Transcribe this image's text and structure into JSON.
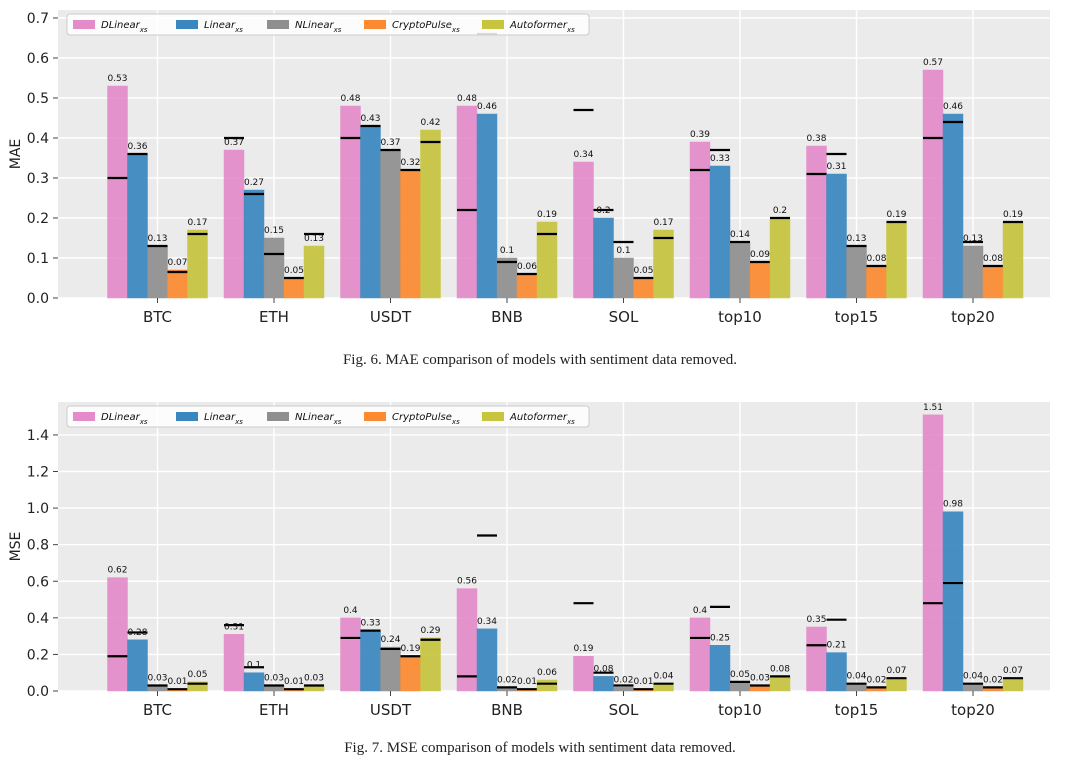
{
  "chart_data": [
    {
      "type": "bar",
      "ylabel": "MAE",
      "ylim": [
        0,
        0.72
      ],
      "yticks": [
        "0.0",
        "0.1",
        "0.2",
        "0.3",
        "0.4",
        "0.5",
        "0.6",
        "0.7"
      ],
      "ytick_values": [
        0,
        0.1,
        0.2,
        0.3,
        0.4,
        0.5,
        0.6,
        0.7
      ],
      "grid": true,
      "legend_position": "top-left",
      "categories": [
        "BTC",
        "ETH",
        "USDT",
        "BNB",
        "SOL",
        "top10",
        "top15",
        "top20"
      ],
      "series": [
        {
          "name": "DLinear",
          "sub": "xs",
          "color": "#e48bca",
          "values": [
            0.53,
            0.37,
            0.48,
            0.48,
            0.34,
            0.39,
            0.38,
            0.57
          ],
          "labels": [
            "0.53",
            "0.37",
            "0.48",
            "0.48",
            "0.34",
            "0.39",
            "0.38",
            "0.57"
          ],
          "baseline": [
            0.3,
            0.4,
            0.4,
            0.22,
            0.47,
            0.32,
            0.31,
            0.4
          ]
        },
        {
          "name": "Linear",
          "sub": "xs",
          "color": "#3a87c0",
          "values": [
            0.36,
            0.27,
            0.43,
            0.46,
            0.2,
            0.33,
            0.31,
            0.46
          ],
          "labels": [
            "0.36",
            "0.27",
            "0.43",
            "0.46",
            "0.2",
            "0.33",
            "0.31",
            "0.46"
          ],
          "baseline": [
            0.36,
            0.26,
            0.43,
            0.66,
            0.22,
            0.37,
            0.36,
            0.44
          ]
        },
        {
          "name": "NLinear",
          "sub": "xs",
          "color": "#8f8f8f",
          "values": [
            0.13,
            0.15,
            0.37,
            0.1,
            0.1,
            0.14,
            0.13,
            0.13
          ],
          "labels": [
            "0.13",
            "0.15",
            "0.37",
            "0.1",
            "0.1",
            "0.14",
            "0.13",
            "0.13"
          ],
          "baseline": [
            0.13,
            0.11,
            0.37,
            0.09,
            0.14,
            0.14,
            0.13,
            0.14
          ]
        },
        {
          "name": "CryptoPulse",
          "sub": "xs",
          "color": "#fb8a30",
          "values": [
            0.07,
            0.05,
            0.32,
            0.06,
            0.05,
            0.09,
            0.08,
            0.08
          ],
          "labels": [
            "0.07",
            "0.05",
            "0.32",
            "0.06",
            "0.05",
            "0.09",
            "0.08",
            "0.08"
          ],
          "baseline": [
            0.065,
            0.05,
            0.32,
            0.06,
            0.05,
            0.09,
            0.08,
            0.08
          ]
        },
        {
          "name": "Autoformer",
          "sub": "xs",
          "color": "#c7c43e",
          "values": [
            0.17,
            0.13,
            0.42,
            0.19,
            0.17,
            0.2,
            0.19,
            0.19
          ],
          "labels": [
            "0.17",
            "0.13",
            "0.42",
            "0.19",
            "0.17",
            "0.2",
            "0.19",
            "0.19"
          ],
          "baseline": [
            0.16,
            0.16,
            0.39,
            0.16,
            0.15,
            0.2,
            0.19,
            0.19
          ]
        }
      ],
      "caption": "Fig. 6.  MAE comparison of models with sentiment data removed."
    },
    {
      "type": "bar",
      "ylabel": "MSE",
      "ylim": [
        0,
        1.58
      ],
      "yticks": [
        "0.0",
        "0.2",
        "0.4",
        "0.6",
        "0.8",
        "1.0",
        "1.2",
        "1.4"
      ],
      "ytick_values": [
        0,
        0.2,
        0.4,
        0.6,
        0.8,
        1.0,
        1.2,
        1.4
      ],
      "grid": true,
      "legend_position": "top-left",
      "categories": [
        "BTC",
        "ETH",
        "USDT",
        "BNB",
        "SOL",
        "top10",
        "top15",
        "top20"
      ],
      "series": [
        {
          "name": "DLinear",
          "sub": "xs",
          "color": "#e48bca",
          "values": [
            0.62,
            0.31,
            0.4,
            0.56,
            0.19,
            0.4,
            0.35,
            1.51
          ],
          "labels": [
            "0.62",
            "0.31",
            "0.4",
            "0.56",
            "0.19",
            "0.4",
            "0.35",
            "1.51"
          ],
          "baseline": [
            0.19,
            0.36,
            0.29,
            0.08,
            0.48,
            0.29,
            0.25,
            0.48
          ]
        },
        {
          "name": "Linear",
          "sub": "xs",
          "color": "#3a87c0",
          "values": [
            0.28,
            0.1,
            0.33,
            0.34,
            0.08,
            0.25,
            0.21,
            0.98
          ],
          "labels": [
            "0.28",
            "0.1",
            "0.33",
            "0.34",
            "0.08",
            "0.25",
            "0.21",
            "0.98"
          ],
          "baseline": [
            0.32,
            0.13,
            0.33,
            0.85,
            0.1,
            0.46,
            0.39,
            0.59
          ]
        },
        {
          "name": "NLinear",
          "sub": "xs",
          "color": "#8f8f8f",
          "values": [
            0.03,
            0.03,
            0.24,
            0.02,
            0.02,
            0.05,
            0.04,
            0.04
          ],
          "labels": [
            "0.03",
            "0.03",
            "0.24",
            "0.02",
            "0.02",
            "0.05",
            "0.04",
            "0.04"
          ],
          "baseline": [
            0.03,
            0.03,
            0.23,
            0.02,
            0.03,
            0.05,
            0.04,
            0.04
          ]
        },
        {
          "name": "CryptoPulse",
          "sub": "xs",
          "color": "#fb8a30",
          "values": [
            0.01,
            0.01,
            0.19,
            0.01,
            0.01,
            0.03,
            0.02,
            0.02
          ],
          "labels": [
            "0.01",
            "0.01",
            "0.19",
            "0.01",
            "0.01",
            "0.03",
            "0.02",
            "0.02"
          ],
          "baseline": [
            0.01,
            0.01,
            0.19,
            0.01,
            0.01,
            0.03,
            0.02,
            0.02
          ]
        },
        {
          "name": "Autoformer",
          "sub": "xs",
          "color": "#c7c43e",
          "values": [
            0.05,
            0.03,
            0.29,
            0.06,
            0.04,
            0.08,
            0.07,
            0.07
          ],
          "labels": [
            "0.05",
            "0.03",
            "0.29",
            "0.06",
            "0.04",
            "0.08",
            "0.07",
            "0.07"
          ],
          "baseline": [
            0.04,
            0.03,
            0.28,
            0.04,
            0.04,
            0.08,
            0.07,
            0.07
          ]
        }
      ],
      "caption": "Fig. 7.  MSE comparison of models with sentiment data removed."
    }
  ]
}
